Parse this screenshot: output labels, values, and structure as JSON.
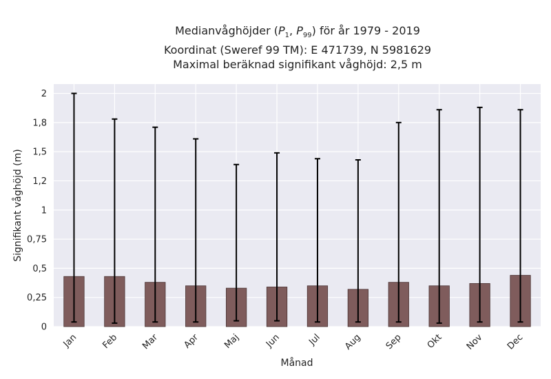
{
  "chart_data": {
    "type": "bar",
    "title": {
      "line1_prefix": "Medianvåghöjder (",
      "p1": "P",
      "p1_sub": "1",
      "sep": ", ",
      "p99": "P",
      "p99_sub": "99",
      "line1_suffix": ") för år 1979 - 2019",
      "line2": "Koordinat (Sweref 99 TM): E 471739, N 5981629",
      "line3": "Maximal beräknad signifikant våghöjd: 2,5 m"
    },
    "xlabel": "Månad",
    "ylabel": "Signifikant våghöjd (m)",
    "categories": [
      "Jan",
      "Feb",
      "Mar",
      "Apr",
      "Maj",
      "Jun",
      "Jul",
      "Aug",
      "Sep",
      "Okt",
      "Nov",
      "Dec"
    ],
    "series": [
      {
        "values": [
          0.43,
          0.43,
          0.38,
          0.35,
          0.33,
          0.34,
          0.35,
          0.32,
          0.38,
          0.35,
          0.37,
          0.44
        ],
        "error_low": [
          0.04,
          0.03,
          0.04,
          0.04,
          0.05,
          0.05,
          0.04,
          0.04,
          0.04,
          0.03,
          0.04,
          0.04
        ],
        "error_high": [
          2.0,
          1.78,
          1.71,
          1.61,
          1.39,
          1.49,
          1.44,
          1.43,
          1.75,
          1.86,
          1.88,
          1.86
        ]
      }
    ],
    "yticks": [
      0,
      0.25,
      0.5,
      0.75,
      1,
      1.25,
      1.5,
      1.75,
      2
    ],
    "ytick_labels": [
      "0",
      "0,25",
      "0,5",
      "0,75",
      "1",
      "1,2",
      "1,5",
      "1,8",
      "2"
    ],
    "ylim": [
      0,
      2.08
    ],
    "grid": true,
    "colors": {
      "bar": "#7f5c5c",
      "bar_edge": "#4a3434",
      "error_bar": "#000000",
      "plot_background": "#eaeaf2",
      "grid": "#ffffff"
    }
  }
}
